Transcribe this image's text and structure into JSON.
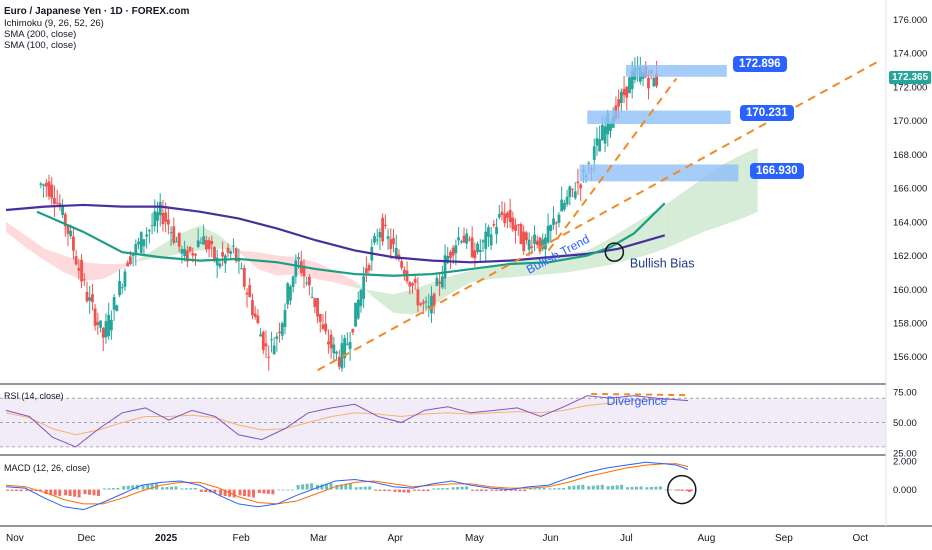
{
  "header": {
    "title": "Euro / Japanese Yen · 1D · FOREX.com",
    "indicators": [
      "Ichimoku (9, 26, 52, 26)",
      "SMA (200, close)",
      "SMA (100, close)"
    ]
  },
  "panes": {
    "rsi_label": "RSI (14, close)",
    "macd_label": "MACD (12, 26, close)"
  },
  "annotations": {
    "bullish_trend": "Bullish Trend",
    "bullish_bias": "Bullish Bias",
    "divergence": "Divergence"
  },
  "levels": [
    {
      "label": "172.896",
      "value": 172.896
    },
    {
      "label": "170.231",
      "value": 170.231
    },
    {
      "label": "166.930",
      "value": 166.93
    }
  ],
  "last_price": {
    "label": "172.365",
    "value": 172.365
  },
  "colors": {
    "up": "#26a69a",
    "down": "#ef5350",
    "accent": "#2962ff",
    "sma200": "#4a2d9e",
    "sma100": "#199f82",
    "trend": "#f08a24",
    "cloud_green": "#c8e6c9",
    "cloud_red": "#ffcdd2"
  },
  "chart_data": [
    {
      "type": "candlestick",
      "title": "Euro / Japanese Yen · 1D · FOREX.com",
      "x_ticks": [
        "Nov",
        "Dec",
        "2025",
        "Feb",
        "Mar",
        "Apr",
        "May",
        "Jun",
        "Jul",
        "Aug",
        "Sep",
        "Oct"
      ],
      "y_ticks": [
        "176.000",
        "174.000",
        "172.000",
        "170.000",
        "168.000",
        "166.000",
        "164.000",
        "162.000",
        "160.000",
        "158.000",
        "156.000"
      ],
      "ylim": [
        154.5,
        176.8
      ],
      "close_path": [
        166.2,
        165.6,
        164.4,
        163.0,
        161.2,
        159.6,
        158.4,
        157.2,
        158.6,
        160.1,
        161.8,
        162.4,
        163.2,
        163.8,
        164.6,
        163.9,
        162.8,
        161.9,
        162.3,
        163.1,
        162.4,
        161.6,
        161.9,
        162.3,
        160.8,
        159.4,
        157.8,
        156.4,
        156.9,
        158.3,
        160.6,
        161.7,
        160.4,
        159.2,
        157.4,
        156.6,
        155.9,
        156.9,
        158.6,
        160.7,
        162.2,
        163.7,
        162.9,
        162.1,
        161.3,
        160.2,
        159.1,
        158.7,
        160.1,
        161.6,
        162.6,
        163.3,
        162.5,
        162.2,
        162.9,
        163.7,
        164.4,
        164.1,
        163.3,
        162.6,
        163.2,
        162.4,
        163.6,
        164.6,
        165.3,
        166.1,
        166.7,
        167.7,
        168.9,
        169.9,
        170.7,
        171.6,
        172.6,
        172.9,
        172.5,
        172.365
      ],
      "x_start": 0.45,
      "x_step": 0.105,
      "ichimoku_span_a": [
        163.4,
        162.5,
        161.7,
        161.0,
        160.5,
        160.6,
        161.2,
        161.9,
        162.6,
        163.3,
        163.8,
        163.2,
        162.2,
        161.2,
        160.8,
        160.9,
        160.6,
        160.4,
        160.1,
        159.9,
        159.7,
        160.0,
        160.4,
        160.8,
        161.1,
        161.3,
        161.6,
        161.8,
        162.0,
        162.1,
        162.3,
        162.9,
        163.6,
        164.3,
        165.0,
        165.8,
        166.6,
        167.4,
        168.0,
        168.4
      ],
      "ichimoku_span_b": [
        164.0,
        163.2,
        162.4,
        162.0,
        161.6,
        161.5,
        161.5,
        161.7,
        161.9,
        162.1,
        162.3,
        162.4,
        162.3,
        162.2,
        162.0,
        161.9,
        161.6,
        161.1,
        160.5,
        159.5,
        158.6,
        158.5,
        159.0,
        159.8,
        160.4,
        160.6,
        160.7,
        160.8,
        160.9,
        161.0,
        161.2,
        161.4,
        161.7,
        162.0,
        162.4,
        162.9,
        163.4,
        163.8,
        164.2,
        164.6
      ],
      "ichimoku_x": [
        0.0,
        0.25,
        0.5,
        0.75,
        1.0,
        1.25,
        1.5,
        1.75,
        2.0,
        2.25,
        2.5,
        2.75,
        3.0,
        3.25,
        3.5,
        3.75,
        4.0,
        4.25,
        4.5,
        4.75,
        5.0,
        5.25,
        5.5,
        5.75,
        6.0,
        6.25,
        6.5,
        6.75,
        7.0,
        7.25,
        7.5,
        7.75,
        8.0,
        8.25,
        8.5,
        8.75,
        9.0,
        9.25,
        9.5,
        9.7
      ],
      "series": [
        {
          "name": "SMA (200, close)",
          "x": [
            0,
            0.5,
            1.0,
            1.5,
            2.0,
            2.5,
            3.0,
            3.5,
            4.0,
            4.5,
            5.0,
            5.5,
            6.0,
            6.5,
            7.0,
            7.5,
            7.9,
            8.2,
            8.5
          ],
          "values": [
            164.7,
            164.9,
            165.0,
            164.9,
            164.9,
            164.6,
            164.2,
            163.6,
            162.9,
            162.3,
            161.9,
            161.7,
            161.6,
            161.7,
            161.9,
            162.1,
            162.4,
            162.8,
            163.2
          ]
        },
        {
          "name": "SMA (100, close)",
          "x": [
            0.4,
            1.0,
            1.5,
            2.0,
            2.5,
            3.0,
            3.5,
            4.0,
            4.5,
            5.0,
            5.5,
            6.0,
            6.5,
            7.0,
            7.5,
            7.8,
            8.1,
            8.3,
            8.5
          ],
          "values": [
            164.6,
            163.4,
            162.2,
            161.9,
            161.7,
            161.8,
            161.6,
            161.2,
            160.9,
            160.8,
            160.9,
            161.2,
            161.5,
            161.6,
            162.0,
            162.5,
            163.3,
            164.2,
            165.1
          ]
        }
      ],
      "trendlines": [
        {
          "from": [
            4.02,
            155.2
          ],
          "to": [
            11.25,
            173.5
          ]
        },
        {
          "from": [
            7.0,
            162.3
          ],
          "to": [
            8.65,
            172.5
          ]
        }
      ],
      "zones": [
        {
          "label": "172.896",
          "x0": 8.0,
          "x1": 9.3,
          "y0": 172.6,
          "y1": 173.3
        },
        {
          "label": "170.231",
          "x0": 7.5,
          "x1": 9.35,
          "y0": 169.8,
          "y1": 170.6
        },
        {
          "label": "166.930",
          "x0": 7.4,
          "x1": 9.45,
          "y0": 166.4,
          "y1": 167.4
        }
      ],
      "bullish_bias_circle": [
        7.85,
        162.2
      ]
    },
    {
      "type": "line",
      "title": "RSI (14, close)",
      "y_ticks": [
        "75.00",
        "50.00",
        "25.00"
      ],
      "ylim": [
        25,
        80
      ],
      "band": [
        30,
        70
      ],
      "x": [
        0,
        0.3,
        0.6,
        0.9,
        1.2,
        1.5,
        1.8,
        2.1,
        2.4,
        2.7,
        3.0,
        3.3,
        3.6,
        3.9,
        4.2,
        4.5,
        4.8,
        5.1,
        5.4,
        5.7,
        6.0,
        6.3,
        6.6,
        6.9,
        7.2,
        7.5,
        7.8,
        8.1,
        8.4,
        8.6,
        8.8
      ],
      "values": [
        60,
        55,
        38,
        30,
        45,
        58,
        62,
        52,
        60,
        55,
        40,
        36,
        45,
        58,
        62,
        65,
        55,
        50,
        60,
        63,
        58,
        60,
        62,
        55,
        63,
        72,
        70,
        72,
        70,
        69,
        68
      ],
      "signal": [
        58,
        54,
        45,
        40,
        44,
        50,
        55,
        55,
        56,
        54,
        48,
        44,
        45,
        50,
        55,
        58,
        57,
        55,
        57,
        58,
        57,
        58,
        59,
        58,
        60,
        64,
        66,
        68,
        69,
        69,
        68
      ],
      "divergence_line": {
        "from": [
          7.55,
          73.5
        ],
        "to": [
          8.8,
          72.5
        ]
      }
    },
    {
      "type": "bar",
      "title": "MACD (12, 26, close)",
      "y_ticks": [
        "2.000",
        "0.000"
      ],
      "ylim": [
        -2.4,
        2.2
      ],
      "x": [
        0,
        0.25,
        0.5,
        0.75,
        1.0,
        1.25,
        1.5,
        1.75,
        2.0,
        2.25,
        2.5,
        2.75,
        3.0,
        3.25,
        3.5,
        3.75,
        4.0,
        4.25,
        4.5,
        4.75,
        5.0,
        5.25,
        5.5,
        5.75,
        6.0,
        6.25,
        6.5,
        6.75,
        7.0,
        7.25,
        7.5,
        7.75,
        8.0,
        8.25,
        8.5,
        8.65,
        8.8
      ],
      "macd": [
        0.2,
        0.1,
        -0.6,
        -1.2,
        -1.4,
        -0.9,
        -0.3,
        0.3,
        0.5,
        0.6,
        0.3,
        -0.4,
        -1.0,
        -1.2,
        -1.0,
        -0.4,
        0.1,
        0.6,
        0.7,
        0.5,
        0.2,
        0.1,
        0.4,
        0.6,
        0.3,
        0.1,
        0.0,
        0.2,
        0.3,
        0.8,
        1.2,
        1.5,
        1.7,
        1.9,
        1.8,
        1.7,
        1.4
      ],
      "signal": [
        0.3,
        0.2,
        -0.2,
        -0.7,
        -1.0,
        -1.0,
        -0.6,
        -0.1,
        0.3,
        0.5,
        0.5,
        0.1,
        -0.5,
        -0.9,
        -1.0,
        -0.8,
        -0.3,
        0.2,
        0.5,
        0.6,
        0.4,
        0.2,
        0.3,
        0.4,
        0.4,
        0.2,
        0.1,
        0.1,
        0.2,
        0.5,
        0.9,
        1.2,
        1.5,
        1.7,
        1.8,
        1.8,
        1.6
      ],
      "hist": [
        -0.1,
        -0.1,
        -0.4,
        -0.5,
        -0.4,
        0.1,
        0.3,
        0.4,
        0.2,
        0.1,
        -0.2,
        -0.5,
        -0.5,
        -0.3,
        0.0,
        0.4,
        0.4,
        0.4,
        0.2,
        -0.1,
        -0.2,
        -0.1,
        0.1,
        0.2,
        -0.1,
        -0.1,
        -0.1,
        0.1,
        0.1,
        0.3,
        0.3,
        0.3,
        0.2,
        0.2,
        0.0,
        -0.1,
        -0.2
      ]
    }
  ]
}
